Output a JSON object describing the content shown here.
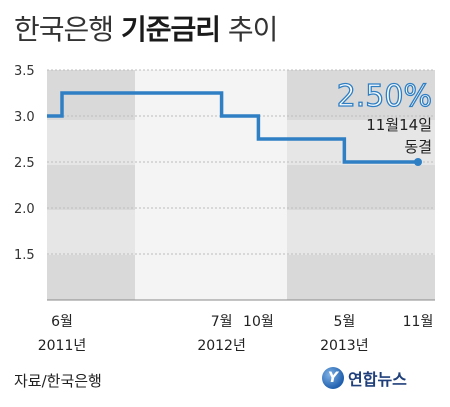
{
  "header": {
    "title_light": "한국은행",
    "title_bold": "기준금리",
    "title_tail": "추이"
  },
  "footer": {
    "source": "자료/한국은행",
    "logo_text": "연합뉴스"
  },
  "colors": {
    "line": "#2f7fc4",
    "accent": "#2f7fc4",
    "band_gray": "#d9d9d9",
    "band_light": "#eeeeee",
    "axis": "#8a8a8a"
  },
  "chart_data": {
    "type": "line",
    "title": "한국은행 기준금리 추이",
    "xlabel": "",
    "ylabel": "",
    "ylim": [
      1.0,
      3.5
    ],
    "yticks": [
      "3.5",
      "3.0",
      "2.5",
      "2.0",
      "1.5"
    ],
    "series": [
      {
        "step": true,
        "points": [
          {
            "x": "2011-06",
            "y": 3.0
          },
          {
            "x": "2011-06",
            "y": 3.25
          },
          {
            "x": "2012-07",
            "y": 3.25
          },
          {
            "x": "2012-07",
            "y": 3.0
          },
          {
            "x": "2012-10",
            "y": 3.0
          },
          {
            "x": "2012-10",
            "y": 2.75
          },
          {
            "x": "2013-05",
            "y": 2.75
          },
          {
            "x": "2013-05",
            "y": 2.5
          },
          {
            "x": "2013-11",
            "y": 2.5
          }
        ]
      }
    ],
    "x_labels": [
      {
        "month": "6월",
        "year": "2011년",
        "x": "2011-06"
      },
      {
        "month": "7월",
        "year": "2012년",
        "x": "2012-07"
      },
      {
        "month": "10월",
        "year": "",
        "x": "2012-10"
      },
      {
        "month": "5월",
        "year": "2013년",
        "x": "2013-05"
      },
      {
        "month": "11월",
        "year": "",
        "x": "2013-11"
      }
    ],
    "annotation": {
      "value": "2.50%",
      "line1": "11월14일",
      "line2": "동결"
    }
  }
}
